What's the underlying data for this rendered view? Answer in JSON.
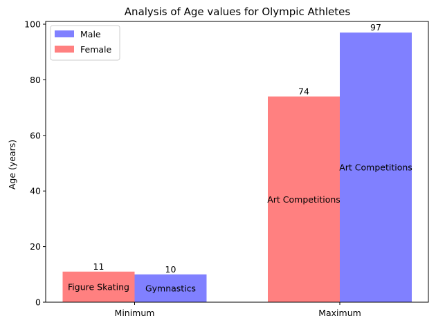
{
  "chart_data": {
    "type": "bar",
    "title": "Analysis of Age values for Olympic Athletes",
    "xlabel": "",
    "ylabel": "Age (years)",
    "categories": [
      "Minimum",
      "Maximum"
    ],
    "ylim": [
      0,
      101
    ],
    "yticks": [
      0,
      20,
      40,
      60,
      80,
      100
    ],
    "grid": false,
    "legend_position": "top-left",
    "series": [
      {
        "name": "Female",
        "color": "#ff8080",
        "values": [
          11,
          74
        ],
        "sport_labels": [
          "Figure Skating",
          "Art Competitions"
        ]
      },
      {
        "name": "Male",
        "color": "#8080ff",
        "values": [
          10,
          97
        ],
        "sport_labels": [
          "Gymnastics",
          "Art Competitions"
        ]
      }
    ],
    "legend_order": [
      "Male",
      "Female"
    ]
  }
}
